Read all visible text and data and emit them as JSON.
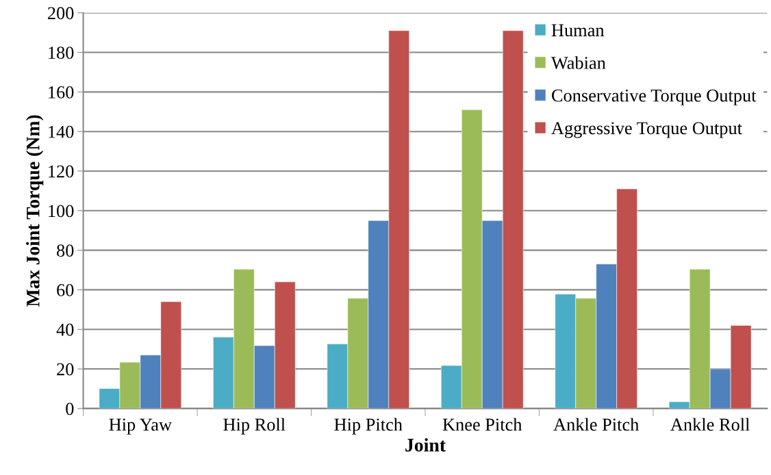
{
  "chart_data": {
    "type": "bar",
    "xlabel": "Joint",
    "ylabel": "Max Joint Torque (Nm)",
    "categories": [
      "Hip Yaw",
      "Hip Roll",
      "Hip Pitch",
      "Knee Pitch",
      "Ankle Pitch",
      "Ankle Roll"
    ],
    "series": [
      {
        "name": "Human",
        "color": "#4bacc6",
        "values": [
          10.1,
          36.1,
          32.6,
          21.7,
          57.8,
          3.4
        ]
      },
      {
        "name": "Wabian",
        "color": "#9bbb59",
        "values": [
          23.4,
          70.4,
          55.7,
          151,
          55.7,
          70.4
        ]
      },
      {
        "name": "Conservative Torque Output",
        "color": "#4f81bd",
        "values": [
          27,
          31.8,
          95,
          95,
          73,
          20
        ]
      },
      {
        "name": "Aggressive Torque Output",
        "color": "#c0504d",
        "values": [
          54,
          64,
          191,
          191,
          111,
          42
        ]
      }
    ],
    "ylim": [
      0,
      200
    ],
    "yticks": [
      0,
      20,
      40,
      60,
      80,
      100,
      120,
      140,
      160,
      180,
      200
    ],
    "grid": "y",
    "legend": "top right"
  }
}
